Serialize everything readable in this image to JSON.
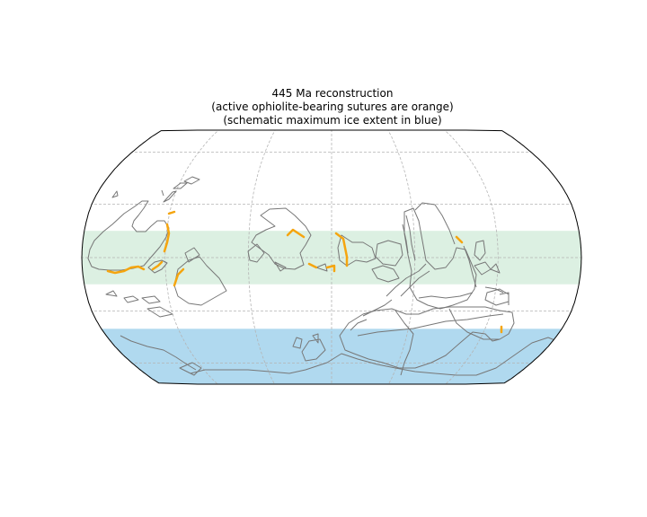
{
  "figure": {
    "title_lines": [
      "445 Ma reconstruction",
      "(active ophiolite-bearing sutures are orange)",
      "(schematic maximum ice extent in blue)"
    ]
  },
  "map": {
    "projection": "Robinson",
    "age": "445 Ma",
    "graticule": {
      "meridians_deg": [
        -120,
        -60,
        0,
        60,
        120
      ],
      "parallels_deg": [
        -60,
        -30,
        0,
        30,
        60
      ],
      "style": "dashed"
    },
    "bands": [
      {
        "name": "tropical band",
        "lat_range_deg": [
          -15,
          15
        ],
        "color": "#dcf0e2"
      },
      {
        "name": "maximum ice extent",
        "lat_range_deg": [
          -90,
          -40
        ],
        "color": "#b0d9ef"
      }
    ],
    "colors": {
      "coastline": "#777777",
      "suture": "#f5a50f",
      "graticule": "#b4b4b4",
      "boundary": "#000000"
    }
  }
}
